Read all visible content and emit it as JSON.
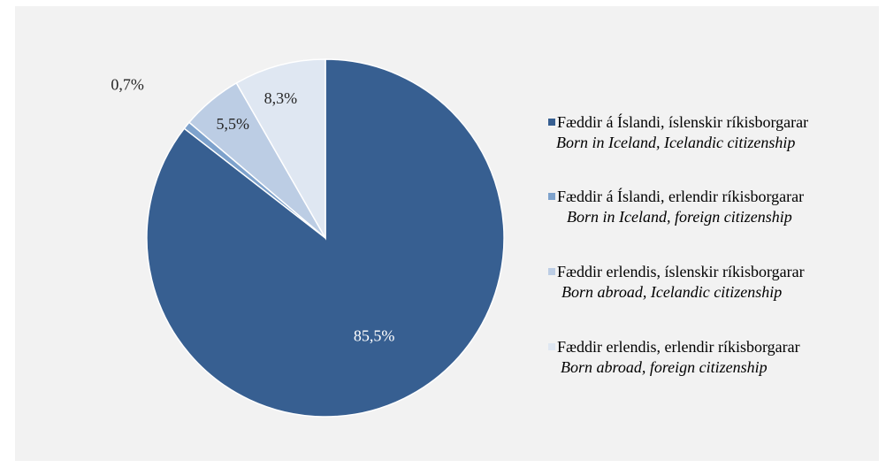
{
  "chart_data": {
    "type": "pie",
    "title": "",
    "slices": [
      {
        "value": 85.5,
        "label": "85,5%",
        "name": "Fæddir á Íslandi, íslenskir ríkisborgarar",
        "name_en": "Born in Iceland, Icelandic citizenship",
        "color": "#375f91",
        "label_color": "#ffffff"
      },
      {
        "value": 0.7,
        "label": "0,7%",
        "name": "Fæddir á Íslandi, erlendir ríkisborgarar",
        "name_en": "Born in Iceland, foreign citizenship",
        "color": "#7ea2cc",
        "label_color": "#262626"
      },
      {
        "value": 5.5,
        "label": "5,5%",
        "name": "Fæddir erlendis, íslenskir ríkisborgarar",
        "name_en": "Born abroad, Icelandic citizenship",
        "color": "#bccde4",
        "label_color": "#262626"
      },
      {
        "value": 8.3,
        "label": "8,3%",
        "name": "Fæddir erlendis, erlendir ríkisborgarar",
        "name_en": "Born abroad, foreign citizenship",
        "color": "#dfe7f2",
        "label_color": "#262626"
      }
    ],
    "legend_position": "right"
  },
  "colors": {
    "background": "#f2f2f2",
    "slice_border": "#ffffff"
  }
}
